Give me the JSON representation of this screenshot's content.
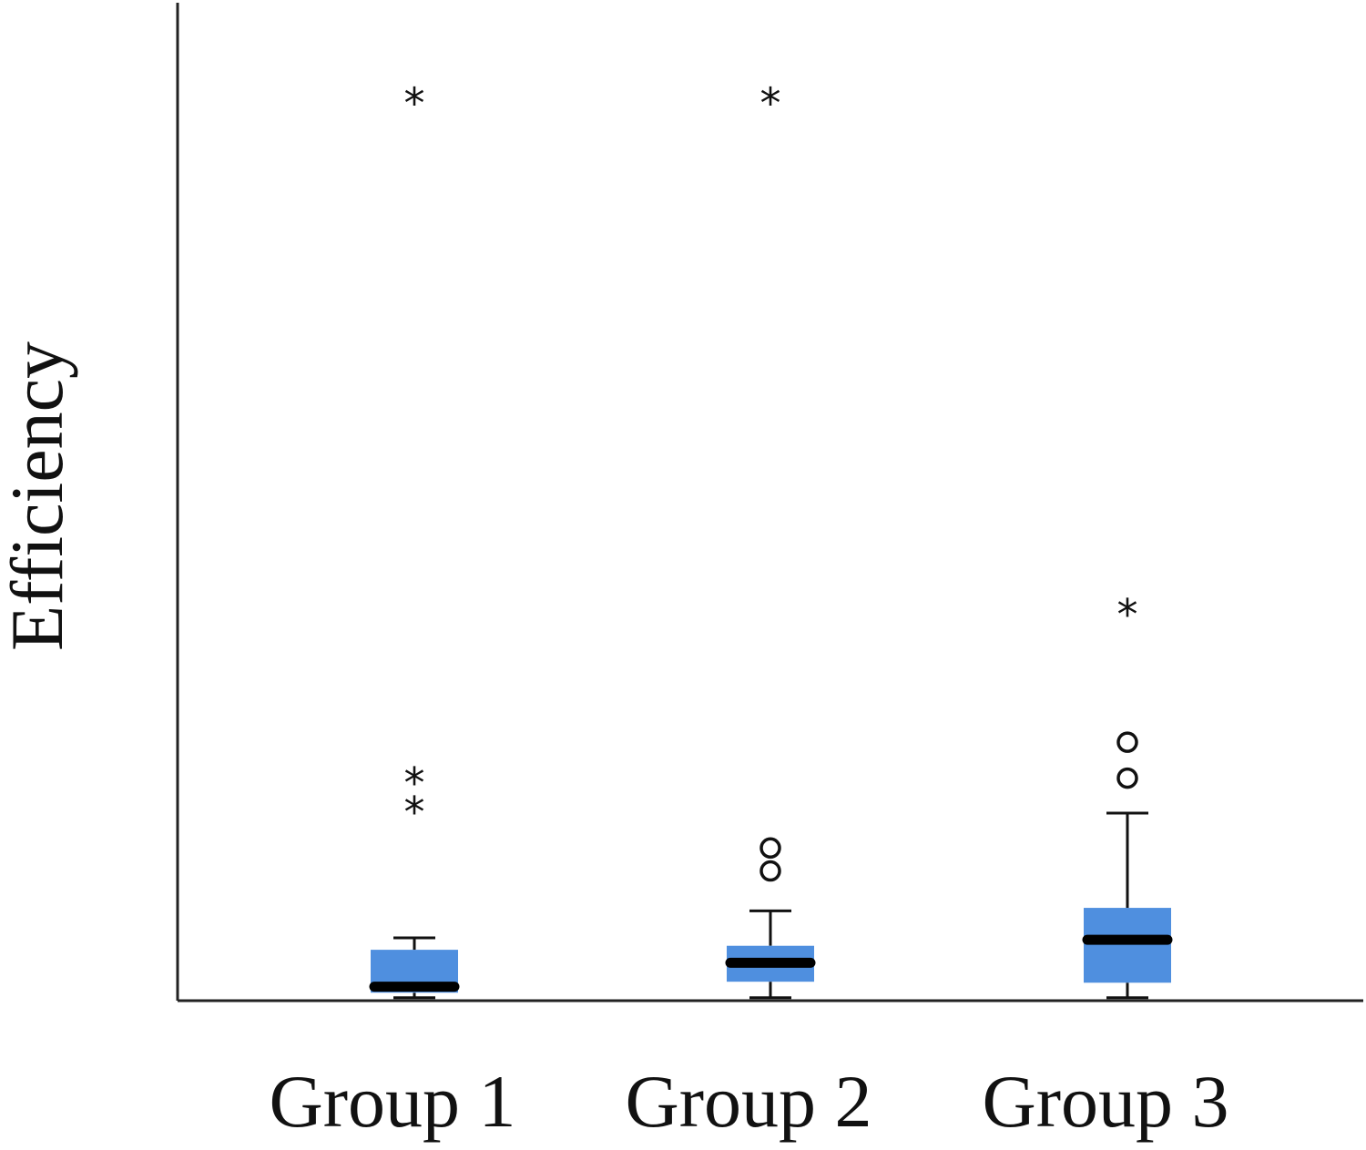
{
  "chart_data": {
    "type": "box",
    "title": "",
    "xlabel": "",
    "ylabel": "Efficiency",
    "categories": [
      "Group 1",
      "Group 2",
      "Group 3"
    ],
    "ylim": [
      0,
      100
    ],
    "grid": false,
    "legend": "none",
    "box_color": "#4f8fdf",
    "median_color": "#000000",
    "boxes": [
      {
        "category": "Group 1",
        "whisker_low": 0.3,
        "q1": 0.8,
        "median": 1.4,
        "q3": 5.1,
        "whisker_high": 6.3,
        "outliers": [
          {
            "value": 19.0,
            "marker": "star"
          },
          {
            "value": 21.9,
            "marker": "star"
          },
          {
            "value": 90.0,
            "marker": "star"
          }
        ]
      },
      {
        "category": "Group 2",
        "whisker_low": 0.3,
        "q1": 1.9,
        "median": 3.8,
        "q3": 5.5,
        "whisker_high": 9.0,
        "outliers": [
          {
            "value": 13.0,
            "marker": "circle"
          },
          {
            "value": 15.3,
            "marker": "circle"
          },
          {
            "value": 90.0,
            "marker": "star"
          }
        ]
      },
      {
        "category": "Group 3",
        "whisker_low": 0.3,
        "q1": 1.8,
        "median": 6.1,
        "q3": 9.3,
        "whisker_high": 18.8,
        "outliers": [
          {
            "value": 22.3,
            "marker": "circle"
          },
          {
            "value": 25.9,
            "marker": "circle"
          },
          {
            "value": 38.8,
            "marker": "star"
          }
        ]
      }
    ]
  }
}
